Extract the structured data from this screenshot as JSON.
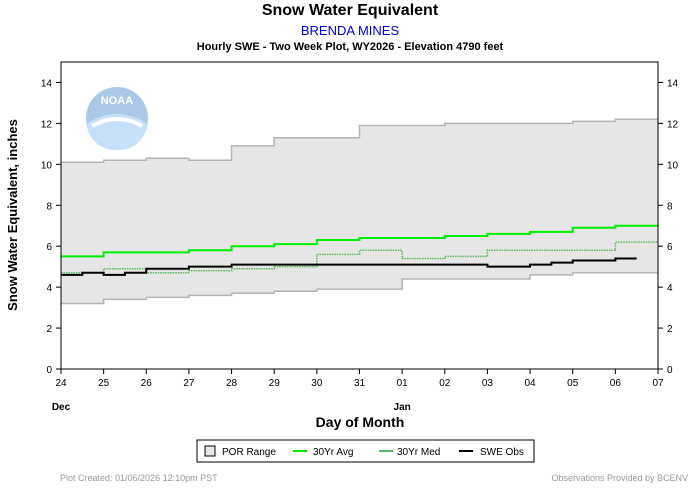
{
  "header": {
    "title": "Snow Water Equivalent",
    "station": "BRENDA MINES",
    "subtitle": "Hourly SWE - Two Week Plot, WY2026 - Elevation 4790 feet"
  },
  "logo": {
    "text": "NOAA"
  },
  "footer": {
    "left": "Plot Created: 01/06/2026 12:10pm PST",
    "right": "Observations Provided by BCENV"
  },
  "chart_data": {
    "type": "line",
    "title": "Snow Water Equivalent",
    "xlabel": "Day of Month",
    "ylabel": "Snow Water Equivalent, inches",
    "x_ticks": [
      "24",
      "25",
      "26",
      "27",
      "28",
      "29",
      "30",
      "31",
      "01",
      "02",
      "03",
      "04",
      "05",
      "06",
      "07"
    ],
    "month_labels": [
      {
        "label": "Dec",
        "at": "24"
      },
      {
        "label": "Jan",
        "at": "01"
      }
    ],
    "xlim": [
      0,
      14
    ],
    "ylim": [
      0,
      15
    ],
    "y_ticks": [
      0,
      2,
      4,
      6,
      8,
      10,
      12,
      14
    ],
    "grid": false,
    "legend_position": "bottom",
    "legend": [
      "POR Range",
      "30Yr Avg",
      "30Yr Med",
      "SWE Obs"
    ],
    "colors": {
      "por": "#e6e6e6",
      "por_edge": "#b4b4b4",
      "avg": "#00ee00",
      "med": "#5cb85c",
      "obs": "#000000"
    },
    "por_range": {
      "x": [
        0,
        1,
        2,
        3,
        4,
        5,
        6,
        7,
        8,
        9,
        10,
        11,
        12,
        13,
        14
      ],
      "upper": [
        10.1,
        10.2,
        10.3,
        10.2,
        10.9,
        11.3,
        11.3,
        11.9,
        11.9,
        12.0,
        12.0,
        12.0,
        12.1,
        12.2,
        12.2
      ],
      "lower": [
        3.2,
        3.4,
        3.5,
        3.6,
        3.7,
        3.8,
        3.9,
        3.9,
        4.4,
        4.4,
        4.4,
        4.6,
        4.7,
        4.7,
        4.7
      ]
    },
    "series": [
      {
        "name": "30Yr Avg",
        "x": [
          0,
          1,
          2,
          3,
          4,
          5,
          6,
          7,
          8,
          9,
          10,
          11,
          12,
          13,
          14
        ],
        "values": [
          5.5,
          5.7,
          5.7,
          5.8,
          6.0,
          6.1,
          6.3,
          6.4,
          6.4,
          6.5,
          6.6,
          6.7,
          6.9,
          7.0,
          7.0
        ]
      },
      {
        "name": "30Yr Med",
        "x": [
          0,
          1,
          2,
          3,
          4,
          5,
          6,
          7,
          7.5,
          8,
          9,
          10,
          11,
          12,
          13,
          14
        ],
        "values": [
          4.7,
          4.9,
          4.7,
          4.8,
          4.9,
          5.0,
          5.6,
          5.8,
          5.8,
          5.4,
          5.5,
          5.8,
          5.8,
          5.8,
          6.2,
          6.2
        ]
      },
      {
        "name": "SWE Obs",
        "x": [
          0,
          0.5,
          1,
          1.5,
          2,
          2.5,
          3,
          4,
          5,
          6,
          7,
          8,
          9,
          10,
          10.5,
          11,
          11.5,
          12,
          12.5,
          13,
          13.5
        ],
        "values": [
          4.6,
          4.7,
          4.6,
          4.7,
          4.9,
          4.9,
          5.0,
          5.1,
          5.1,
          5.1,
          5.1,
          5.1,
          5.1,
          5.0,
          5.0,
          5.1,
          5.2,
          5.3,
          5.3,
          5.4,
          5.4
        ]
      }
    ]
  }
}
